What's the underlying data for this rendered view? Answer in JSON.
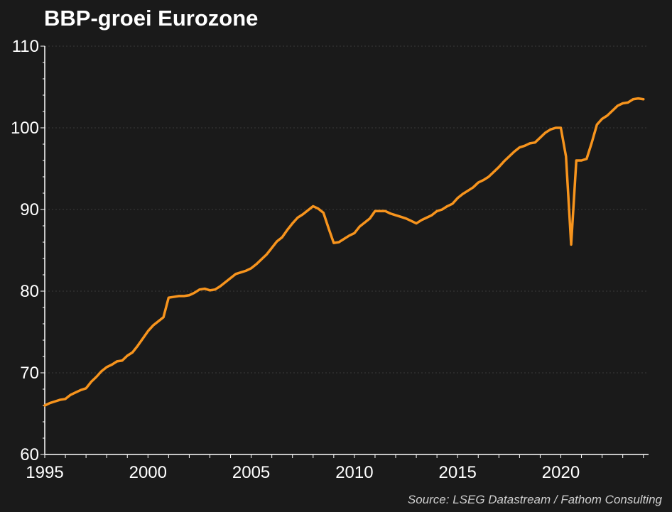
{
  "title": "BBP-groei Eurozone",
  "source": "Source: LSEG Datastream / Fathom Consulting",
  "colors": {
    "background": "#1a1a1a",
    "line": "#f7941d",
    "axis": "#ffffff",
    "grid": "#3a3a3a",
    "text": "#ffffff"
  },
  "chart_data": {
    "type": "line",
    "title": "BBP-groei Eurozone",
    "xlabel": "",
    "ylabel": "",
    "xlim": [
      1995,
      2024.25
    ],
    "ylim": [
      60,
      110
    ],
    "x_ticks": [
      1995,
      2000,
      2005,
      2010,
      2015,
      2020
    ],
    "y_ticks": [
      60,
      70,
      80,
      90,
      100,
      110
    ],
    "grid": "horizontal dashed",
    "legend": "none",
    "series": [
      {
        "color": "#f7941d",
        "x": [
          1995.0,
          1995.25,
          1995.5,
          1995.75,
          1996.0,
          1996.25,
          1996.5,
          1996.75,
          1997.0,
          1997.25,
          1997.5,
          1997.75,
          1998.0,
          1998.25,
          1998.5,
          1998.75,
          1999.0,
          1999.25,
          1999.5,
          1999.75,
          2000.0,
          2000.25,
          2000.5,
          2000.75,
          2001.0,
          2001.25,
          2001.5,
          2001.75,
          2002.0,
          2002.25,
          2002.5,
          2002.75,
          2003.0,
          2003.25,
          2003.5,
          2003.75,
          2004.0,
          2004.25,
          2004.5,
          2004.75,
          2005.0,
          2005.25,
          2005.5,
          2005.75,
          2006.0,
          2006.25,
          2006.5,
          2006.75,
          2007.0,
          2007.25,
          2007.5,
          2007.75,
          2008.0,
          2008.25,
          2008.5,
          2008.75,
          2009.0,
          2009.25,
          2009.5,
          2009.75,
          2010.0,
          2010.25,
          2010.5,
          2010.75,
          2011.0,
          2011.25,
          2011.5,
          2011.75,
          2012.0,
          2012.25,
          2012.5,
          2012.75,
          2013.0,
          2013.25,
          2013.5,
          2013.75,
          2014.0,
          2014.25,
          2014.5,
          2014.75,
          2015.0,
          2015.25,
          2015.5,
          2015.75,
          2016.0,
          2016.25,
          2016.5,
          2016.75,
          2017.0,
          2017.25,
          2017.5,
          2017.75,
          2018.0,
          2018.25,
          2018.5,
          2018.75,
          2019.0,
          2019.25,
          2019.5,
          2019.75,
          2020.0,
          2020.25,
          2020.5,
          2020.75,
          2021.0,
          2021.25,
          2021.5,
          2021.75,
          2022.0,
          2022.25,
          2022.5,
          2022.75,
          2023.0,
          2023.25,
          2023.5,
          2023.75,
          2024.0
        ],
        "y": [
          66.0,
          66.3,
          66.5,
          66.7,
          66.8,
          67.3,
          67.6,
          67.9,
          68.1,
          68.9,
          69.5,
          70.2,
          70.7,
          71.0,
          71.4,
          71.5,
          72.1,
          72.5,
          73.3,
          74.2,
          75.1,
          75.8,
          76.3,
          76.8,
          79.2,
          79.3,
          79.4,
          79.4,
          79.5,
          79.8,
          80.2,
          80.3,
          80.1,
          80.2,
          80.6,
          81.1,
          81.6,
          82.1,
          82.3,
          82.5,
          82.8,
          83.3,
          83.9,
          84.5,
          85.3,
          86.1,
          86.6,
          87.5,
          88.3,
          89.0,
          89.4,
          89.9,
          90.4,
          90.1,
          89.6,
          87.7,
          85.9,
          86.0,
          86.4,
          86.8,
          87.1,
          87.9,
          88.4,
          88.9,
          89.8,
          89.8,
          89.8,
          89.5,
          89.3,
          89.1,
          88.9,
          88.6,
          88.3,
          88.7,
          89.0,
          89.3,
          89.8,
          90.0,
          90.4,
          90.7,
          91.4,
          91.9,
          92.3,
          92.7,
          93.3,
          93.6,
          94.0,
          94.6,
          95.2,
          95.9,
          96.5,
          97.1,
          97.6,
          97.8,
          98.1,
          98.2,
          98.8,
          99.4,
          99.8,
          100.0,
          100.0,
          96.5,
          85.7,
          96.0,
          96.0,
          96.2,
          98.2,
          100.4,
          101.1,
          101.5,
          102.1,
          102.7,
          103.0,
          103.1,
          103.5,
          103.6,
          103.5
        ]
      }
    ]
  }
}
